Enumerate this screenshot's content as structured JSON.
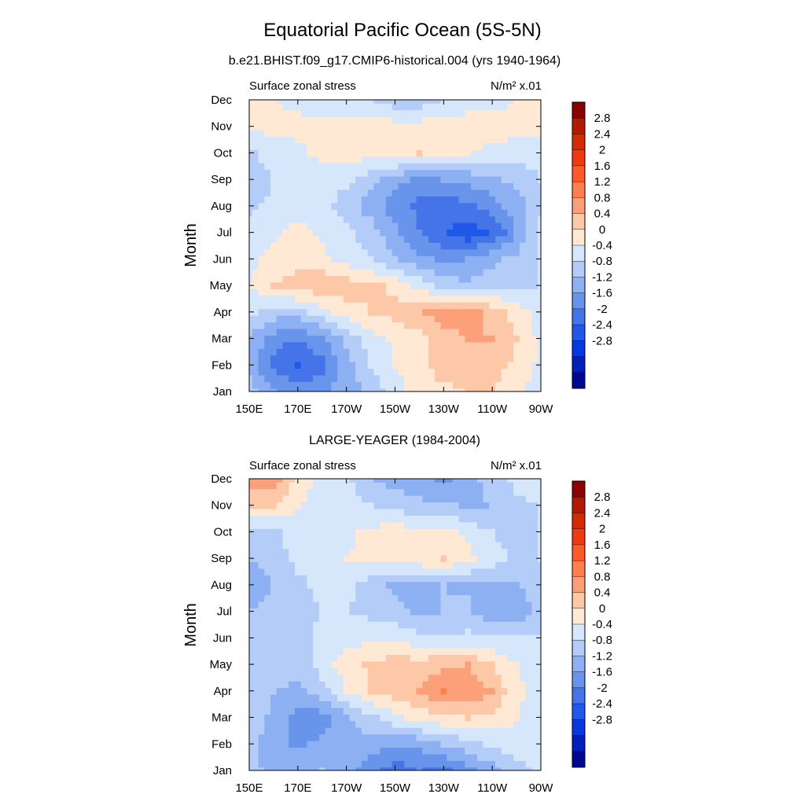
{
  "figure": {
    "title": "Equatorial Pacific Ocean (5S-5N)"
  },
  "colorbar": {
    "labels": [
      "2.8",
      "2.4",
      "2",
      "1.6",
      "1.2",
      "0.8",
      "0.4",
      "0",
      "-0.4",
      "-0.8",
      "-1.2",
      "-1.6",
      "-2",
      "-2.4",
      "-2.8"
    ],
    "colors": [
      "#8b0000",
      "#b01a00",
      "#d42c00",
      "#f03a10",
      "#ff5a28",
      "#ff7f50",
      "#fca07a",
      "#fdc8a8",
      "#ffe8d4",
      "#d6e6fb",
      "#b4cdf8",
      "#8cb0f2",
      "#6894ec",
      "#4474e8",
      "#2058ea",
      "#0838e0",
      "#0020b8",
      "#000890"
    ]
  },
  "chart_data": [
    {
      "type": "heatmap",
      "title": "b.e21.BHIST.f09_g17.CMIP6-historical.004 (yrs 1940-1964)",
      "left_label": "Surface zonal stress",
      "units_label": "N/m² x.01",
      "ylabel": "Month",
      "x_ticks": [
        "150E",
        "170E",
        "170W",
        "150W",
        "130W",
        "110W",
        "90W"
      ],
      "y_ticks": [
        "Jan",
        "Feb",
        "Mar",
        "Apr",
        "May",
        "Jun",
        "Jul",
        "Aug",
        "Sep",
        "Oct",
        "Nov",
        "Dec"
      ],
      "x": [
        150,
        160,
        170,
        180,
        190,
        200,
        210,
        220,
        230,
        240,
        250,
        260,
        270
      ],
      "values": [
        [
          -0.2,
          -0.8,
          -1.0,
          -0.9,
          -0.6,
          -0.3,
          0.2,
          0.6,
          0.7,
          0.8,
          0.8,
          0.5,
          0.2
        ],
        [
          -0.6,
          -1.3,
          -1.7,
          -1.3,
          -0.6,
          0.0,
          0.4,
          0.7,
          1.0,
          1.1,
          1.0,
          0.7,
          0.3
        ],
        [
          -0.5,
          -1.0,
          -1.2,
          -0.9,
          -0.3,
          0.2,
          0.5,
          0.7,
          1.0,
          1.2,
          1.2,
          0.8,
          0.3
        ],
        [
          0.1,
          -0.2,
          -0.2,
          0.2,
          0.6,
          0.8,
          0.9,
          1.1,
          1.5,
          1.4,
          1.1,
          0.6,
          0.2
        ],
        [
          0.4,
          0.8,
          1.0,
          1.1,
          1.0,
          0.9,
          0.7,
          0.3,
          -0.2,
          -0.3,
          -0.2,
          -0.1,
          0.0
        ],
        [
          0.3,
          0.5,
          0.7,
          0.5,
          0.2,
          0.0,
          -0.4,
          -0.7,
          -0.9,
          -0.8,
          -0.5,
          -0.3,
          0.0
        ],
        [
          0.2,
          0.3,
          0.6,
          0.3,
          0.1,
          -0.2,
          -0.7,
          -1.2,
          -1.6,
          -1.9,
          -1.6,
          -0.8,
          0.1
        ],
        [
          -0.1,
          0.1,
          0.1,
          0.1,
          -0.2,
          -0.6,
          -1.0,
          -1.3,
          -1.4,
          -1.3,
          -1.0,
          -0.6,
          -0.1
        ],
        [
          -0.3,
          0.0,
          0.2,
          0.2,
          0.1,
          -0.3,
          -0.7,
          -0.9,
          -0.8,
          -0.7,
          -0.5,
          -0.3,
          0.0
        ],
        [
          -0.1,
          0.2,
          0.3,
          0.5,
          0.6,
          0.6,
          0.7,
          0.8,
          0.6,
          0.4,
          0.3,
          0.2,
          0.2
        ],
        [
          0.5,
          0.5,
          0.5,
          0.5,
          0.5,
          0.6,
          0.6,
          0.6,
          0.6,
          0.6,
          0.6,
          0.5,
          0.5
        ],
        [
          0.5,
          0.4,
          0.3,
          0.2,
          0.1,
          0.0,
          -0.2,
          -0.2,
          0.0,
          0.2,
          0.3,
          0.4,
          0.5
        ]
      ],
      "levels": [
        -2.8,
        -2.4,
        -2.0,
        -1.6,
        -1.2,
        -0.8,
        -0.4,
        0.0,
        0.4,
        0.8,
        1.2,
        1.6,
        2.0,
        2.4,
        2.8
      ]
    },
    {
      "type": "heatmap",
      "title": "LARGE-YEAGER (1984-2004)",
      "left_label": "Surface zonal stress",
      "units_label": "N/m² x.01",
      "ylabel": "Month",
      "x_ticks": [
        "150E",
        "170E",
        "170W",
        "150W",
        "130W",
        "110W",
        "90W"
      ],
      "y_ticks": [
        "Jan",
        "Feb",
        "Mar",
        "Apr",
        "May",
        "Jun",
        "Jul",
        "Aug",
        "Sep",
        "Oct",
        "Nov",
        "Dec"
      ],
      "x": [
        150,
        160,
        170,
        180,
        190,
        200,
        210,
        220,
        230,
        240,
        250,
        260,
        270
      ],
      "values": [
        [
          -0.3,
          -0.5,
          -0.5,
          -0.4,
          -0.6,
          -1.1,
          -1.4,
          -1.2,
          -1.3,
          -0.9,
          -0.6,
          -0.2,
          0.1
        ],
        [
          -0.3,
          -0.6,
          -0.9,
          -0.7,
          -0.5,
          -0.6,
          -0.8,
          -0.7,
          -0.4,
          -0.2,
          0.1,
          0.2,
          0.2
        ],
        [
          -0.2,
          -0.5,
          -1.0,
          -1.0,
          -0.5,
          -0.1,
          0.3,
          0.6,
          0.7,
          0.8,
          0.7,
          0.4,
          0.2
        ],
        [
          -0.1,
          -0.4,
          -0.5,
          -0.2,
          0.4,
          0.8,
          1.0,
          1.2,
          1.6,
          1.5,
          1.2,
          0.5,
          0.2
        ],
        [
          -0.1,
          -0.2,
          -0.3,
          0.2,
          0.6,
          0.9,
          1.0,
          1.0,
          1.1,
          1.2,
          0.8,
          0.4,
          0.1
        ],
        [
          -0.2,
          -0.2,
          -0.2,
          0.1,
          0.2,
          0.3,
          0.3,
          0.1,
          0.1,
          0.1,
          0.1,
          0.0,
          0.0
        ],
        [
          -0.4,
          -0.3,
          -0.1,
          0.0,
          0.0,
          -0.1,
          -0.3,
          -0.5,
          -0.4,
          -0.3,
          -0.8,
          -0.7,
          -0.2
        ],
        [
          -0.7,
          -0.4,
          -0.1,
          0.1,
          0.1,
          -0.2,
          -0.5,
          -0.6,
          -0.4,
          -0.5,
          -0.6,
          -0.5,
          -0.1
        ],
        [
          -0.4,
          -0.2,
          0.1,
          0.2,
          0.4,
          0.5,
          0.6,
          0.7,
          0.8,
          0.5,
          0.2,
          -0.1,
          0.0
        ],
        [
          -0.3,
          -0.1,
          0.2,
          0.3,
          0.3,
          0.5,
          0.6,
          0.6,
          0.6,
          0.3,
          0.0,
          -0.2,
          0.0
        ],
        [
          0.9,
          0.8,
          0.4,
          0.2,
          0.1,
          0.0,
          -0.1,
          -0.3,
          -0.3,
          -0.5,
          -0.4,
          -0.1,
          0.0
        ],
        [
          1.3,
          1.4,
          0.7,
          0.2,
          0.1,
          -0.4,
          -0.6,
          -0.7,
          -0.9,
          -0.6,
          -0.2,
          0.1,
          0.2
        ]
      ],
      "levels": [
        -2.8,
        -2.4,
        -2.0,
        -1.6,
        -1.2,
        -0.8,
        -0.4,
        0.0,
        0.4,
        0.8,
        1.2,
        1.6,
        2.0,
        2.4,
        2.8
      ]
    }
  ]
}
